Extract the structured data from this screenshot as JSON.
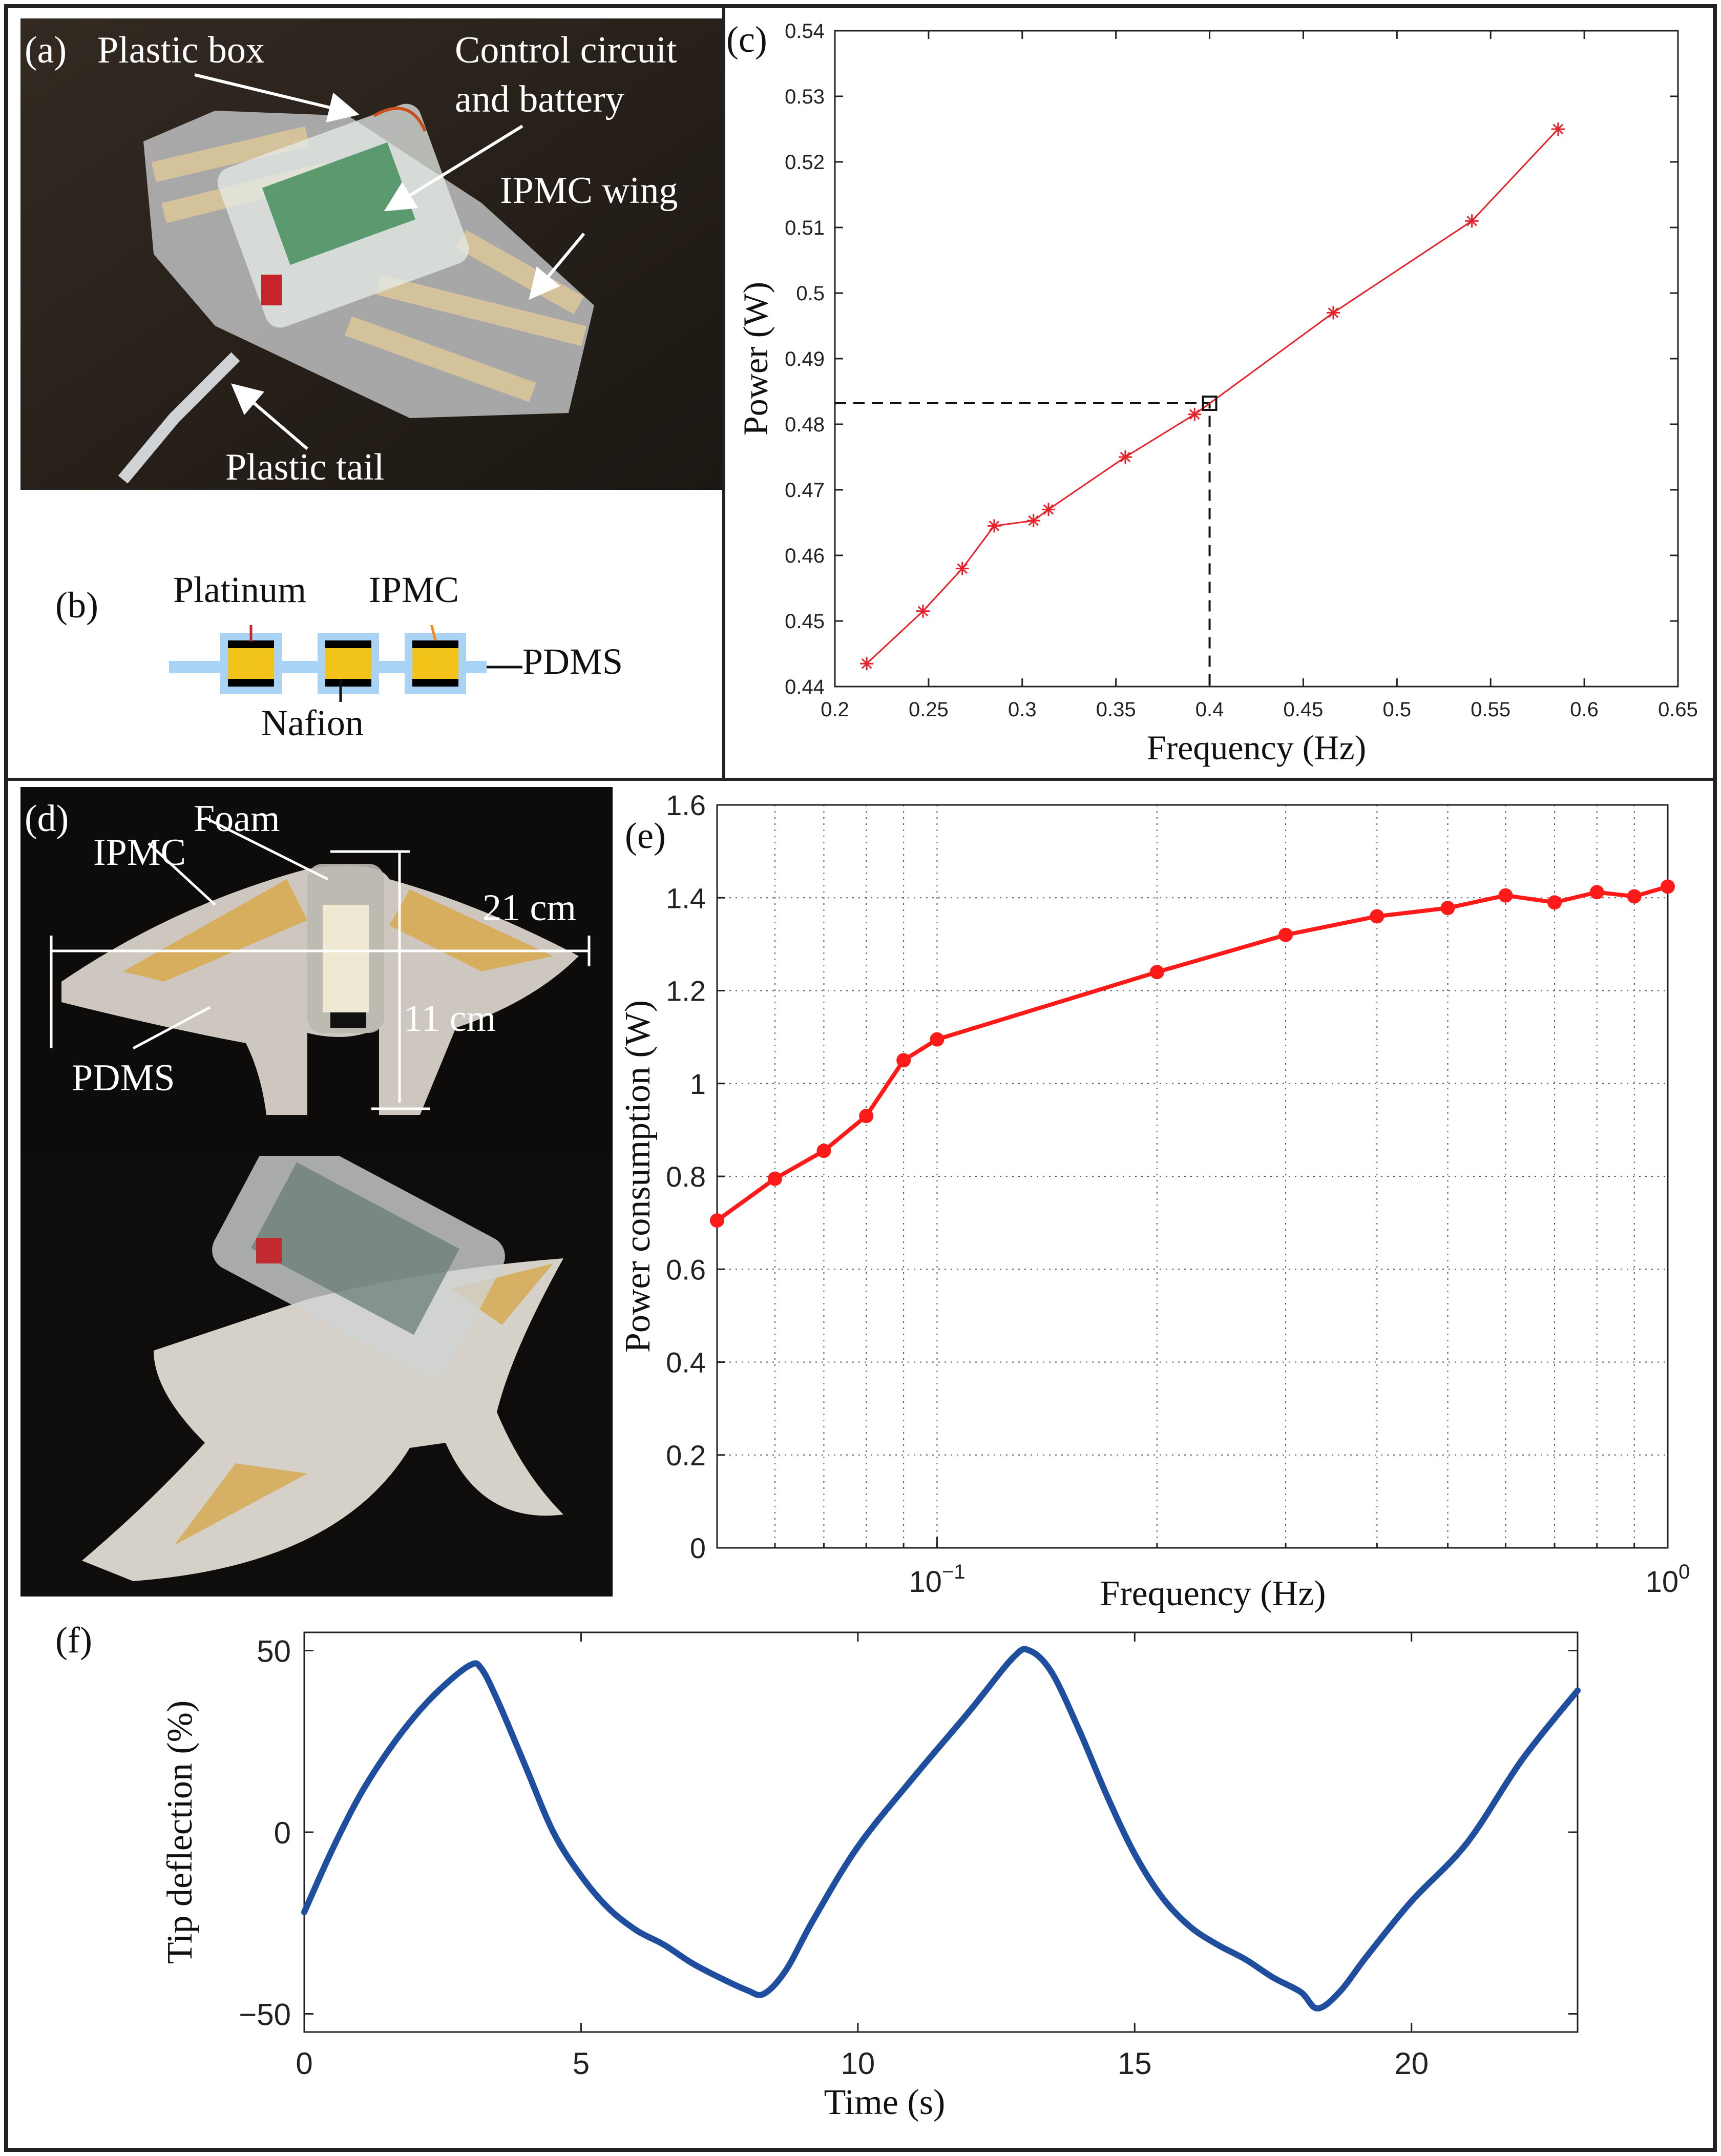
{
  "panels": {
    "a": {
      "letter": "(a)",
      "labels": [
        "Plastic box",
        "Control circuit",
        "and battery",
        "IPMC wing",
        "Plastic tail"
      ]
    },
    "b": {
      "letter": "(b)",
      "labels": {
        "platinum": "Platinum",
        "ipmc": "IPMC",
        "pdms": "PDMS",
        "nafion": "Nafion"
      },
      "colors": {
        "nafion": "#f2c318",
        "pdms": "#a9d3f5",
        "platinum": "#000000"
      }
    },
    "c": {
      "letter": "(c)"
    },
    "d": {
      "letter": "(d)",
      "labels": {
        "foam": "Foam",
        "ipmc": "IPMC",
        "width": "21 cm",
        "height": "11 cm",
        "pdms": "PDMS"
      }
    },
    "e": {
      "letter": "(e)"
    },
    "f": {
      "letter": "(f)"
    }
  },
  "chart_data": [
    {
      "id": "c",
      "type": "line",
      "xlabel": "Frequency (Hz)",
      "ylabel": "Power (W)",
      "xlim": [
        0.2,
        0.65
      ],
      "ylim": [
        0.44,
        0.54
      ],
      "xticks": [
        "0.2",
        "0.25",
        "0.3",
        "0.35",
        "0.4",
        "0.45",
        "0.5",
        "0.55",
        "0.6",
        "0.65"
      ],
      "yticks": [
        "0.44",
        "0.45",
        "0.46",
        "0.47",
        "0.48",
        "0.49",
        "0.5",
        "0.51",
        "0.52",
        "0.53",
        "0.54"
      ],
      "grid": false,
      "color": "#e8202a",
      "marker": "asterisk",
      "x": [
        0.217,
        0.247,
        0.268,
        0.285,
        0.306,
        0.314,
        0.355,
        0.392,
        0.466,
        0.54,
        0.586
      ],
      "y": [
        0.4435,
        0.4515,
        0.458,
        0.4645,
        0.4653,
        0.467,
        0.475,
        0.4815,
        0.497,
        0.511,
        0.525
      ],
      "highlight": {
        "x": 0.4,
        "y": 0.4832
      }
    },
    {
      "id": "e",
      "type": "line",
      "xlabel": "Frequency (Hz)",
      "ylabel": "Power consumption (W)",
      "xscale": "log",
      "xlim": [
        0.05,
        1.0
      ],
      "ylim": [
        0,
        1.6
      ],
      "xticks": [
        {
          "base": "10",
          "exp": "−1",
          "value": 0.1
        },
        {
          "base": "10",
          "exp": "0",
          "value": 1.0
        }
      ],
      "yticks": [
        "0",
        "0.2",
        "0.4",
        "0.6",
        "0.8",
        "1",
        "1.2",
        "1.4",
        "1.6"
      ],
      "grid": true,
      "color": "#ff1a1a",
      "marker": "dot",
      "x": [
        0.05,
        0.06,
        0.07,
        0.08,
        0.09,
        0.1,
        0.2,
        0.3,
        0.4,
        0.5,
        0.6,
        0.7,
        0.8,
        0.9,
        1.0
      ],
      "y": [
        0.705,
        0.795,
        0.855,
        0.93,
        1.05,
        1.095,
        1.24,
        1.32,
        1.36,
        1.378,
        1.405,
        1.39,
        1.412,
        1.403,
        1.424
      ]
    },
    {
      "id": "f",
      "type": "line",
      "xlabel": "Time (s)",
      "ylabel": "Tip deflection (%)",
      "xlim": [
        0,
        23
      ],
      "ylim": [
        -55,
        55
      ],
      "xticks": [
        "0",
        "5",
        "10",
        "15",
        "20"
      ],
      "yticks": [
        "50",
        "0",
        "−50"
      ],
      "grid": false,
      "color": "#1f4e9e",
      "x": [
        0,
        0.5,
        1,
        1.5,
        2,
        2.5,
        3,
        3.2,
        3.5,
        4,
        4.5,
        5,
        5.5,
        6,
        6.5,
        7,
        7.5,
        8,
        8.3,
        8.7,
        9.2,
        10,
        11,
        12,
        12.8,
        13.1,
        13.5,
        14,
        14.5,
        15,
        15.5,
        16,
        16.5,
        17,
        17.5,
        18,
        18.3,
        18.7,
        19.2,
        20,
        21,
        22,
        23
      ],
      "y": [
        -22,
        -5,
        10,
        22,
        32,
        40,
        46,
        45,
        36,
        18,
        0,
        -12,
        -21,
        -27,
        -31,
        -36,
        -40,
        -43.5,
        -44.5,
        -38,
        -24,
        -4,
        15,
        33,
        48,
        50,
        44,
        28,
        10,
        -6,
        -18,
        -26,
        -31,
        -35,
        -40,
        -44,
        -48.5,
        -44,
        -34,
        -19,
        -3,
        20,
        39
      ]
    }
  ]
}
